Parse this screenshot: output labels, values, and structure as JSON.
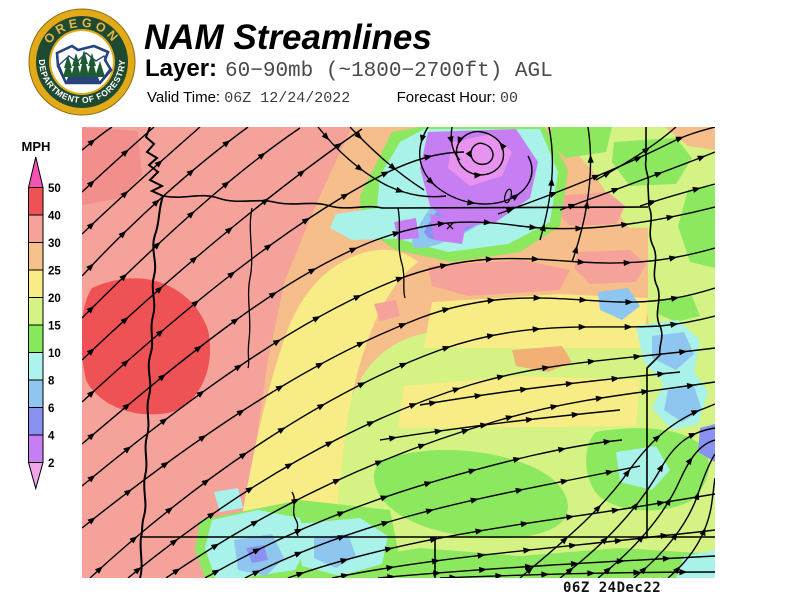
{
  "header": {
    "logo": {
      "top_text": "OREGON",
      "bottom_text": "DEPARTMENT OF FORESTRY"
    },
    "title": "NAM Streamlines",
    "layer_label": "Layer:",
    "layer_value": "60−90mb (~1800−2700ft) AGL",
    "valid_time_label": "Valid Time:",
    "valid_time_value": "06Z 12/24/2022",
    "forecast_hour_label": "Forecast Hour:",
    "forecast_hour_value": "00"
  },
  "legend": {
    "units_label": "MPH",
    "ticks": [
      "50",
      "40",
      "30",
      "25",
      "20",
      "15",
      "10",
      "8",
      "6",
      "4",
      "2"
    ],
    "segment_colors": [
      "#EF5254",
      "#F5A29B",
      "#F5C28C",
      "#F7EC86",
      "#D5F285",
      "#86E95C",
      "#ABF3EC",
      "#8FC6F0",
      "#8A92F0",
      "#C77EF2"
    ],
    "arrow_top_color": "#F353B5",
    "arrow_bottom_color": "#EFA6E9"
  },
  "map": {
    "timestamp": "06Z 24Dec22",
    "region": "Oregon",
    "palette": {
      "peach_base": "#F5BE8A",
      "salmon": "#F5A29B",
      "deep_salmon": "#F28E8C",
      "red": "#EF5254",
      "yellow": "#F7EC86",
      "orange": "#F2B077",
      "yellow_green": "#D5F285",
      "green": "#8BE85F",
      "cyan": "#A8F2EA",
      "light_blue": "#8FC6F0",
      "periwinkle": "#8A92F0",
      "violet": "#C77EF2",
      "pink_violet": "#E893EF",
      "line_color": "#000000"
    }
  }
}
